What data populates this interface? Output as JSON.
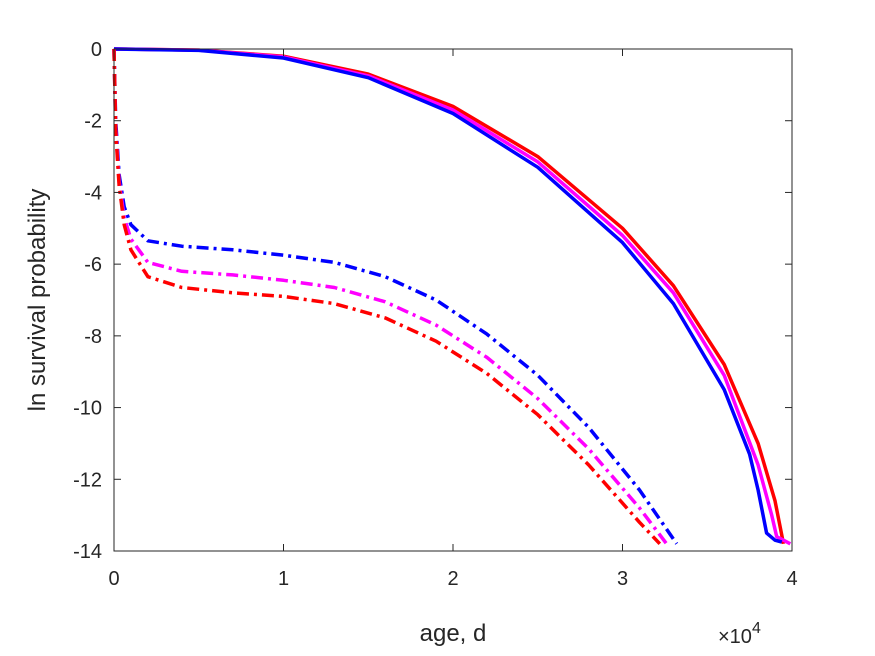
{
  "chart_data": {
    "type": "line",
    "title": "",
    "xlabel": "age, d",
    "ylabel": "ln survival probability",
    "x_exponent_label": "×10",
    "x_exponent_power": "4",
    "x_tick_labels": [
      "0",
      "1",
      "2",
      "3",
      "4"
    ],
    "y_tick_labels": [
      "0",
      "-2",
      "-4",
      "-6",
      "-8",
      "-10",
      "-12",
      "-14"
    ],
    "xlim": [
      0,
      40000
    ],
    "ylim": [
      -14,
      0
    ],
    "x_ticks": [
      0,
      10000,
      20000,
      30000,
      40000
    ],
    "y_ticks": [
      0,
      -2,
      -4,
      -6,
      -8,
      -10,
      -12,
      -14
    ],
    "grid": false,
    "legend": "none",
    "series": [
      {
        "color": "#ff0000",
        "line_style": "solid",
        "points": [
          [
            0,
            0
          ],
          [
            5000,
            -0.03
          ],
          [
            10000,
            -0.2
          ],
          [
            15000,
            -0.7
          ],
          [
            20000,
            -1.6
          ],
          [
            25000,
            -3.0
          ],
          [
            30000,
            -5.0
          ],
          [
            33000,
            -6.6
          ],
          [
            36000,
            -8.8
          ],
          [
            38000,
            -11.0
          ],
          [
            39000,
            -12.6
          ],
          [
            39500,
            -13.8
          ]
        ]
      },
      {
        "color": "#ff00ff",
        "line_style": "solid",
        "points": [
          [
            0,
            0
          ],
          [
            5000,
            -0.03
          ],
          [
            10000,
            -0.22
          ],
          [
            15000,
            -0.75
          ],
          [
            20000,
            -1.7
          ],
          [
            25000,
            -3.15
          ],
          [
            30000,
            -5.2
          ],
          [
            33000,
            -6.8
          ],
          [
            36000,
            -9.1
          ],
          [
            38000,
            -11.6
          ],
          [
            38800,
            -13.0
          ],
          [
            39100,
            -13.6
          ],
          [
            39500,
            -13.7
          ],
          [
            39900,
            -13.8
          ]
        ]
      },
      {
        "color": "#0000ff",
        "line_style": "solid",
        "points": [
          [
            0,
            0
          ],
          [
            5000,
            -0.04
          ],
          [
            10000,
            -0.25
          ],
          [
            15000,
            -0.8
          ],
          [
            20000,
            -1.8
          ],
          [
            25000,
            -3.3
          ],
          [
            30000,
            -5.4
          ],
          [
            33000,
            -7.1
          ],
          [
            36000,
            -9.5
          ],
          [
            37500,
            -11.3
          ],
          [
            38000,
            -12.3
          ],
          [
            38500,
            -13.5
          ],
          [
            39000,
            -13.7
          ],
          [
            39400,
            -13.75
          ]
        ]
      },
      {
        "color": "#0000ff",
        "line_style": "dashdot",
        "points": [
          [
            0,
            0
          ],
          [
            100,
            -2.0
          ],
          [
            300,
            -3.5
          ],
          [
            600,
            -4.4
          ],
          [
            1000,
            -4.9
          ],
          [
            2000,
            -5.35
          ],
          [
            4000,
            -5.5
          ],
          [
            7000,
            -5.6
          ],
          [
            10000,
            -5.75
          ],
          [
            13000,
            -5.95
          ],
          [
            16000,
            -6.35
          ],
          [
            19000,
            -7.0
          ],
          [
            22000,
            -7.95
          ],
          [
            25000,
            -9.1
          ],
          [
            28000,
            -10.55
          ],
          [
            31000,
            -12.3
          ],
          [
            33200,
            -13.8
          ]
        ]
      },
      {
        "color": "#ff00ff",
        "line_style": "dashdot",
        "points": [
          [
            0,
            0
          ],
          [
            100,
            -2.2
          ],
          [
            300,
            -3.7
          ],
          [
            600,
            -4.7
          ],
          [
            1000,
            -5.3
          ],
          [
            2000,
            -5.95
          ],
          [
            4000,
            -6.2
          ],
          [
            7000,
            -6.3
          ],
          [
            10000,
            -6.45
          ],
          [
            13000,
            -6.65
          ],
          [
            16000,
            -7.05
          ],
          [
            19000,
            -7.7
          ],
          [
            22000,
            -8.6
          ],
          [
            25000,
            -9.75
          ],
          [
            28000,
            -11.15
          ],
          [
            31000,
            -12.8
          ],
          [
            32600,
            -13.8
          ]
        ]
      },
      {
        "color": "#ff0000",
        "line_style": "dashdot",
        "points": [
          [
            0,
            0
          ],
          [
            100,
            -2.3
          ],
          [
            300,
            -3.8
          ],
          [
            600,
            -4.9
          ],
          [
            1000,
            -5.6
          ],
          [
            2000,
            -6.35
          ],
          [
            4000,
            -6.65
          ],
          [
            7000,
            -6.8
          ],
          [
            10000,
            -6.9
          ],
          [
            13000,
            -7.1
          ],
          [
            16000,
            -7.5
          ],
          [
            19000,
            -8.15
          ],
          [
            22000,
            -9.05
          ],
          [
            25000,
            -10.2
          ],
          [
            28000,
            -11.6
          ],
          [
            31000,
            -13.2
          ],
          [
            32200,
            -13.8
          ]
        ]
      }
    ]
  }
}
